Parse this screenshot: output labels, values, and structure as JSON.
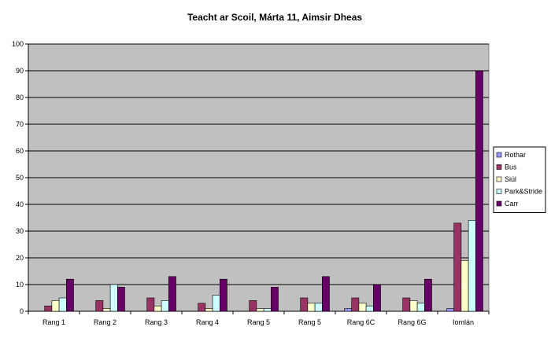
{
  "chart_data": {
    "type": "bar",
    "title": "Teacht ar Scoil, Márta 11, Aimsir Dheas",
    "xlabel": "",
    "ylabel": "",
    "ylim": [
      0,
      100
    ],
    "yticks": [
      0,
      10,
      20,
      30,
      40,
      50,
      60,
      70,
      80,
      90,
      100
    ],
    "grid": true,
    "legend_position": "right",
    "categories": [
      "Rang 1",
      "Rang 2",
      "Rang 3",
      "Rang 4",
      "Rang 5",
      "Rang 5",
      "Rang 6C",
      "Rang 6G",
      "Iomlán"
    ],
    "series": [
      {
        "name": "Rothar",
        "color": "#9999ff",
        "values": [
          0,
          0,
          0,
          0,
          0,
          0,
          1,
          0,
          1
        ]
      },
      {
        "name": "Bus",
        "color": "#993366",
        "values": [
          2,
          4,
          5,
          3,
          4,
          5,
          5,
          5,
          33
        ]
      },
      {
        "name": "Siúl",
        "color": "#ffffcc",
        "values": [
          4,
          1,
          2,
          1,
          1,
          3,
          3,
          4,
          19
        ]
      },
      {
        "name": "Park&Stride",
        "color": "#ccffff",
        "values": [
          5,
          10,
          4,
          6,
          1,
          3,
          2,
          3,
          34
        ]
      },
      {
        "name": "Carr",
        "color": "#660066",
        "values": [
          12,
          9,
          13,
          12,
          9,
          13,
          10,
          12,
          90
        ]
      }
    ],
    "plot_background": "#c0c0c0"
  }
}
